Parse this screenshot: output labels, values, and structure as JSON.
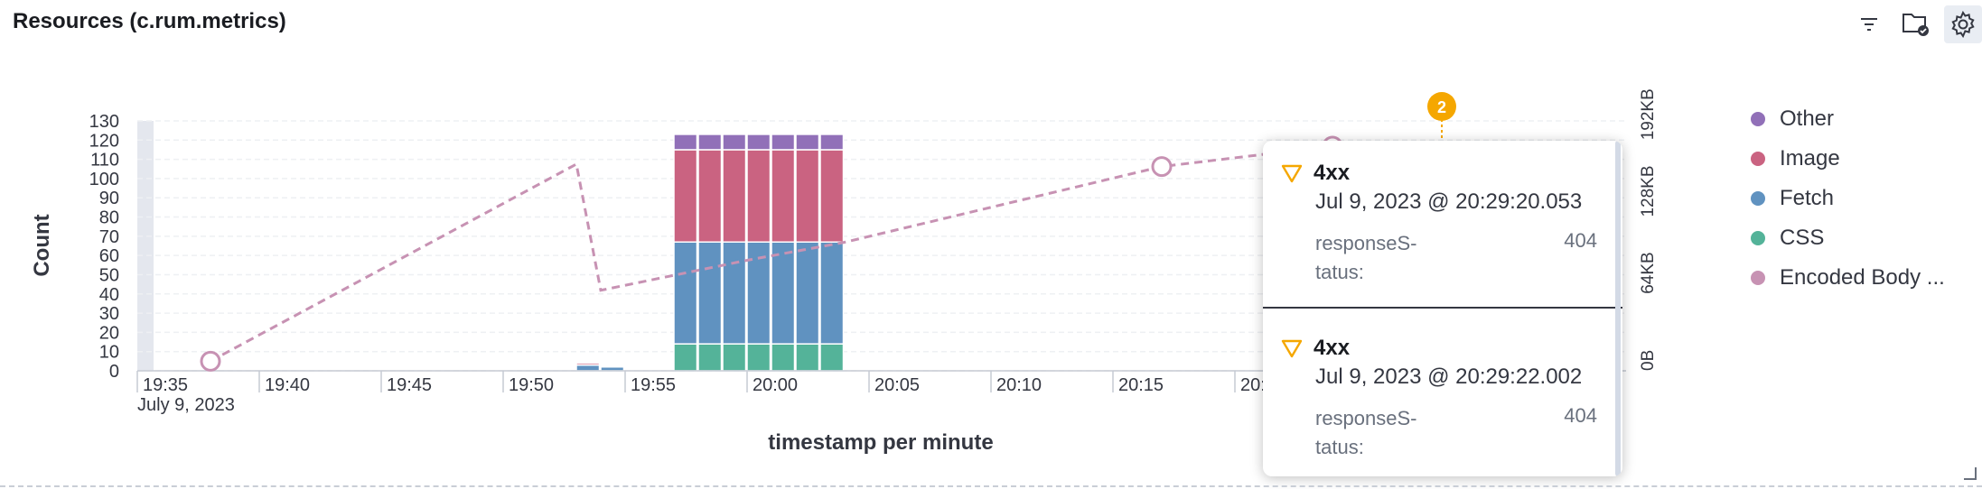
{
  "panel": {
    "title": "Resources (c.rum.metrics)"
  },
  "toolbar": {
    "icons": [
      "filter-icon",
      "folder-check-icon",
      "gear-icon"
    ]
  },
  "colors": {
    "Other": "#9170b8",
    "Image": "#ca6381",
    "Fetch": "#6092c0",
    "CSS": "#54b399",
    "Encoded Body Size": "#c792b3",
    "annotation": "#f5a700"
  },
  "legend": {
    "items": [
      {
        "label": "Other",
        "color": "#9170b8"
      },
      {
        "label": "Image",
        "color": "#ca6381"
      },
      {
        "label": "Fetch",
        "color": "#6092c0"
      },
      {
        "label": "CSS",
        "color": "#54b399"
      },
      {
        "label": "Encoded Body ...",
        "color": "#c792b3"
      }
    ]
  },
  "chart_data": {
    "type": "bar",
    "stacked": true,
    "xlabel": "timestamp per minute",
    "ylabel": "Count",
    "y2label": "Encoded Body Size",
    "ylim": [
      0,
      130
    ],
    "yticks": [
      0,
      10,
      20,
      30,
      40,
      50,
      60,
      70,
      80,
      90,
      100,
      110,
      120,
      130
    ],
    "y2ticks": [
      "0B",
      "64KB",
      "128KB",
      "192KB"
    ],
    "y2ticks_kb": [
      0,
      64,
      128,
      192
    ],
    "xticks": [
      "19:35",
      "19:40",
      "19:45",
      "19:50",
      "19:55",
      "20:00",
      "20:05",
      "20:10",
      "20:15",
      "20:20"
    ],
    "xdate": "July 9, 2023",
    "xrange_minutes": [
      "19:35",
      "20:24"
    ],
    "grid": true,
    "legend_position": "right",
    "categories": [
      "19:53",
      "19:54",
      "19:57",
      "19:58",
      "19:59",
      "20:00",
      "20:01",
      "20:02",
      "20:03"
    ],
    "series": [
      {
        "name": "CSS",
        "values": [
          0,
          0,
          14,
          14,
          14,
          14,
          14,
          14,
          14
        ]
      },
      {
        "name": "Fetch",
        "values": [
          3,
          2,
          53,
          53,
          53,
          53,
          53,
          53,
          53
        ]
      },
      {
        "name": "Image",
        "values": [
          1,
          0,
          48,
          48,
          48,
          48,
          48,
          48,
          48
        ]
      },
      {
        "name": "Other",
        "values": [
          0,
          0,
          8,
          8,
          8,
          8,
          8,
          8,
          8
        ]
      }
    ],
    "line_series": {
      "name": "Encoded Body Size",
      "axis": "right",
      "x": [
        "19:38",
        "19:53",
        "19:54",
        "20:00",
        "20:04",
        "20:17",
        "20:24"
      ],
      "y_kb": [
        8,
        172,
        67,
        92,
        107,
        170,
        187
      ],
      "markers": [
        "19:38",
        "20:17",
        "20:24"
      ]
    },
    "annotation": {
      "x": "20:29",
      "count": "2"
    }
  },
  "tooltip": {
    "entries": [
      {
        "title": "4xx",
        "date": "Jul 9, 2023 @ 20:29:20.053",
        "key": "responseS-\ntatus:",
        "value": "404"
      },
      {
        "title": "4xx",
        "date": "Jul 9, 2023 @ 20:29:22.002",
        "key": "responseS-\ntatus:",
        "value": "404"
      }
    ]
  }
}
